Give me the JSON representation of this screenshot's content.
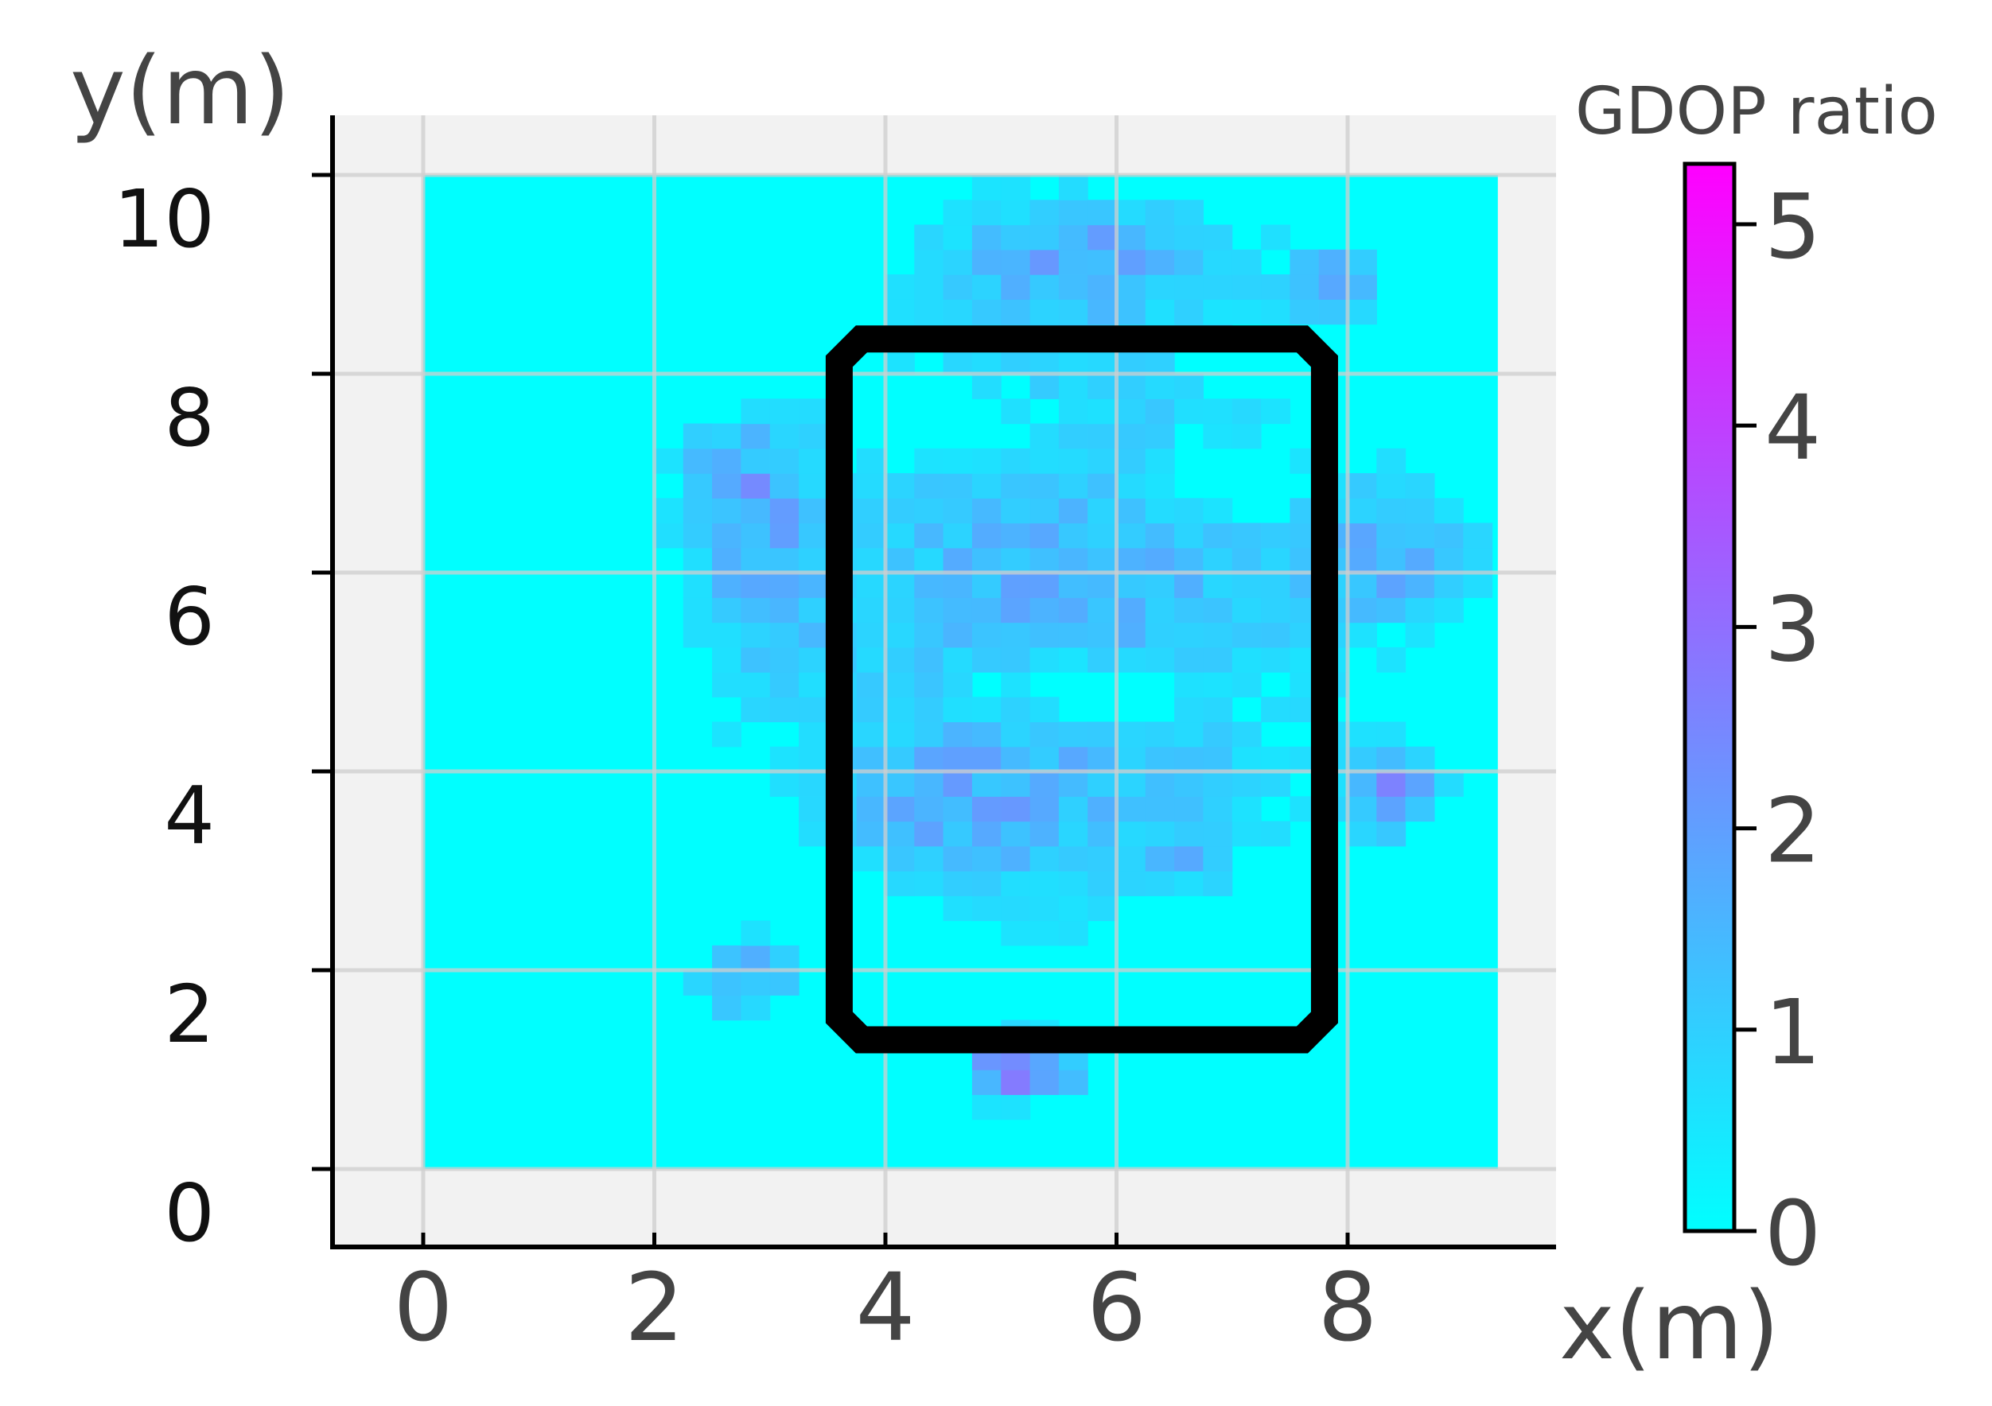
{
  "chart_data": {
    "type": "heatmap",
    "xlabel": "x(m)",
    "ylabel": "y(m)",
    "xlim": [
      -0.8,
      9.7
    ],
    "ylim": [
      -0.35,
      11.2
    ],
    "xticks": [
      0,
      2,
      4,
      6,
      8
    ],
    "yticks": [
      0,
      2,
      4,
      6,
      8,
      10
    ],
    "grid": true,
    "colorbar": {
      "label": "GDOP ratio",
      "range": [
        0,
        5.3
      ],
      "ticks": [
        0,
        1,
        2,
        3,
        4,
        5
      ],
      "color_low": "#00ffff",
      "color_high": "#ff00ff"
    },
    "region": {
      "x": [
        0,
        9.3
      ],
      "y": [
        0,
        10
      ]
    },
    "cell_size": 0.25,
    "outline": {
      "shape": "rounded-rectangle",
      "x": [
        3.6,
        7.8
      ],
      "y": [
        1.3,
        8.35
      ],
      "color": "#000000"
    },
    "blobs": [
      {
        "x": 5.6,
        "y": 5.6,
        "sx": 1.6,
        "sy": 2.2,
        "amp": 1.6
      },
      {
        "x": 4.5,
        "y": 3.6,
        "sx": 0.8,
        "sy": 0.6,
        "amp": 0.8
      },
      {
        "x": 2.9,
        "y": 6.3,
        "sx": 0.5,
        "sy": 1.0,
        "amp": 1.2
      },
      {
        "x": 8.4,
        "y": 6.2,
        "sx": 0.5,
        "sy": 0.5,
        "amp": 1.6
      },
      {
        "x": 8.4,
        "y": 3.8,
        "sx": 0.3,
        "sy": 0.3,
        "amp": 1.8
      },
      {
        "x": 2.8,
        "y": 1.9,
        "sx": 0.3,
        "sy": 0.3,
        "amp": 1.6
      },
      {
        "x": 5.2,
        "y": 1.0,
        "sx": 0.3,
        "sy": 0.2,
        "amp": 3.2
      },
      {
        "x": 5.8,
        "y": 9.2,
        "sx": 0.9,
        "sy": 0.4,
        "amp": 1.4
      },
      {
        "x": 7.9,
        "y": 8.9,
        "sx": 0.25,
        "sy": 0.25,
        "amp": 1.8
      },
      {
        "x": 6.7,
        "y": 3.1,
        "sx": 0.3,
        "sy": 0.3,
        "amp": 0.8
      },
      {
        "x": 2.6,
        "y": 7.0,
        "sx": 0.3,
        "sy": 0.3,
        "amp": 0.8
      }
    ],
    "holes": [
      {
        "x": 6.9,
        "y": 7.0,
        "sx": 0.5,
        "sy": 0.3
      },
      {
        "x": 5.8,
        "y": 4.8,
        "sx": 0.9,
        "sy": 0.3
      },
      {
        "x": 6.9,
        "y": 2.3,
        "sx": 0.6,
        "sy": 0.4
      },
      {
        "x": 4.2,
        "y": 2.2,
        "sx": 0.5,
        "sy": 0.4
      },
      {
        "x": 4.5,
        "y": 7.5,
        "sx": 0.6,
        "sy": 0.3
      }
    ]
  }
}
